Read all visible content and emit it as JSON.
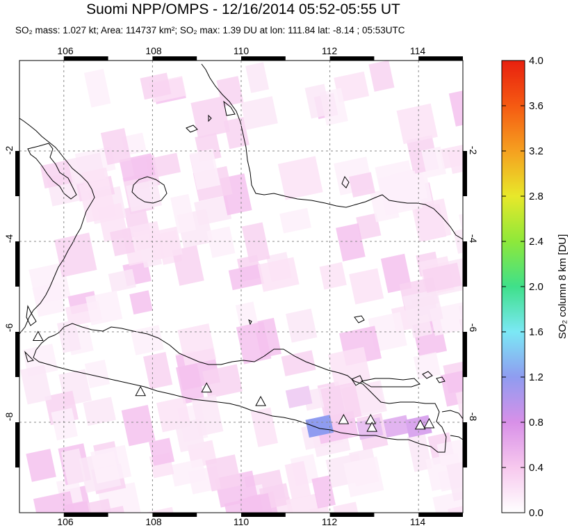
{
  "header": {
    "title": "Suomi NPP/OMPS - 12/16/2014 05:52-05:55 UT",
    "subtitle": "SO₂ mass: 1.027 kt; Area: 114737 km²; SO₂ max: 1.39 DU at lon: 111.84 lat: -8.14 ; 05:53UTC"
  },
  "map": {
    "lon_range": [
      105,
      115
    ],
    "lat_range": [
      -10,
      0
    ],
    "lon_ticks": [
      "106",
      "108",
      "110",
      "112",
      "114"
    ],
    "lat_ticks": [
      "-2",
      "-4",
      "-6",
      "-8"
    ],
    "lat_ticks_right": [
      "-2",
      "-4",
      "-6",
      "-8"
    ],
    "volcano_icon": "triangle-volcano-icon",
    "colors": {
      "coast": "#000000",
      "grid": "#888888",
      "max_pixel": "#8f9cf0"
    }
  },
  "colorbar": {
    "label": "SO₂ column 8 km [DU]",
    "ticks": [
      "4.0",
      "3.6",
      "3.2",
      "2.8",
      "2.4",
      "2.0",
      "1.6",
      "1.2",
      "0.8",
      "0.4",
      "0.0"
    ],
    "range": [
      0,
      4
    ],
    "gradient_colors": [
      "#ffffff",
      "#f7c8ee",
      "#d890e8",
      "#8f9cf0",
      "#7be8f5",
      "#3fe08a",
      "#8ee83a",
      "#e8e82a",
      "#f5a020",
      "#f55a12",
      "#e8200f"
    ]
  },
  "volcanoes": [
    {
      "lon": 105.42,
      "lat": -6.1
    },
    {
      "lon": 107.73,
      "lat": -7.32
    },
    {
      "lon": 109.22,
      "lat": -7.24
    },
    {
      "lon": 110.44,
      "lat": -7.54
    },
    {
      "lon": 112.31,
      "lat": -7.94
    },
    {
      "lon": 112.92,
      "lat": -7.94
    },
    {
      "lon": 112.95,
      "lat": -8.11
    },
    {
      "lon": 114.04,
      "lat": -8.06
    },
    {
      "lon": 114.24,
      "lat": -8.03
    }
  ]
}
